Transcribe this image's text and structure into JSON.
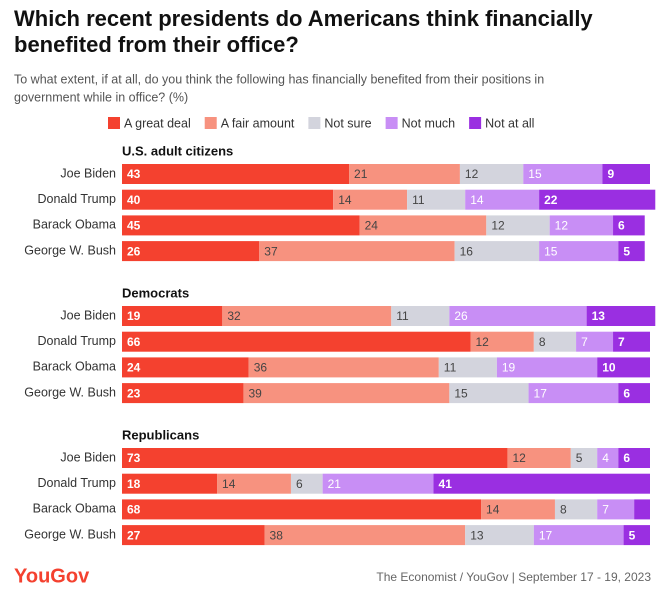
{
  "header": {
    "title": [
      "Which recent presidents do Americans think financially",
      "benefited from their office?"
    ],
    "subtitle": [
      "To what extent, if at all, do you think the following has financially benefited from their positions in",
      "government while in office? (%)"
    ]
  },
  "chart_data": [
    {
      "type": "bar",
      "orientation": "horizontal",
      "stacked": true,
      "title": "U.S. adult citizens",
      "categories": [
        "Joe Biden",
        "Donald Trump",
        "Barack Obama",
        "George W. Bush"
      ],
      "xlim": [
        0,
        100
      ],
      "series": [
        {
          "name": "A great deal",
          "color": "#f4412f",
          "text_color": "#ffffff",
          "values": [
            43,
            40,
            45,
            26
          ]
        },
        {
          "name": "A fair amount",
          "color": "#f7927f",
          "text_color": "#444444",
          "values": [
            21,
            14,
            24,
            37
          ]
        },
        {
          "name": "Not sure",
          "color": "#d3d4dd",
          "text_color": "#444444",
          "values": [
            12,
            11,
            12,
            16
          ]
        },
        {
          "name": "Not much",
          "color": "#c88ef5",
          "text_color": "#ffffff",
          "values": [
            15,
            14,
            12,
            15
          ]
        },
        {
          "name": "Not at all",
          "color": "#9a2fe1",
          "text_color": "#ffffff",
          "values": [
            9,
            22,
            6,
            5
          ]
        }
      ]
    },
    {
      "type": "bar",
      "orientation": "horizontal",
      "stacked": true,
      "title": "Democrats",
      "categories": [
        "Joe Biden",
        "Donald Trump",
        "Barack Obama",
        "George W. Bush"
      ],
      "xlim": [
        0,
        100
      ],
      "series": [
        {
          "name": "A great deal",
          "color": "#f4412f",
          "text_color": "#ffffff",
          "values": [
            19,
            66,
            24,
            23
          ]
        },
        {
          "name": "A fair amount",
          "color": "#f7927f",
          "text_color": "#444444",
          "values": [
            32,
            12,
            36,
            39
          ]
        },
        {
          "name": "Not sure",
          "color": "#d3d4dd",
          "text_color": "#444444",
          "values": [
            11,
            8,
            11,
            15
          ]
        },
        {
          "name": "Not much",
          "color": "#c88ef5",
          "text_color": "#ffffff",
          "values": [
            26,
            7,
            19,
            17
          ]
        },
        {
          "name": "Not at all",
          "color": "#9a2fe1",
          "text_color": "#ffffff",
          "values": [
            13,
            7,
            10,
            6
          ]
        }
      ]
    },
    {
      "type": "bar",
      "orientation": "horizontal",
      "stacked": true,
      "title": "Republicans",
      "categories": [
        "Joe Biden",
        "Donald Trump",
        "Barack Obama",
        "George W. Bush"
      ],
      "xlim": [
        0,
        100
      ],
      "series": [
        {
          "name": "A great deal",
          "color": "#f4412f",
          "text_color": "#ffffff",
          "values": [
            73,
            18,
            68,
            27
          ]
        },
        {
          "name": "A fair amount",
          "color": "#f7927f",
          "text_color": "#444444",
          "values": [
            12,
            14,
            14,
            38
          ]
        },
        {
          "name": "Not sure",
          "color": "#d3d4dd",
          "text_color": "#444444",
          "values": [
            5,
            6,
            8,
            13
          ]
        },
        {
          "name": "Not much",
          "color": "#c88ef5",
          "text_color": "#ffffff",
          "values": [
            4,
            21,
            7,
            17
          ]
        },
        {
          "name": "Not at all",
          "color": "#9a2fe1",
          "text_color": "#ffffff",
          "values": [
            6,
            41,
            3,
            5
          ]
        }
      ]
    }
  ],
  "footer": {
    "brand": "YouGov",
    "source": "The Economist / YouGov | September 17 - 19, 2023"
  }
}
